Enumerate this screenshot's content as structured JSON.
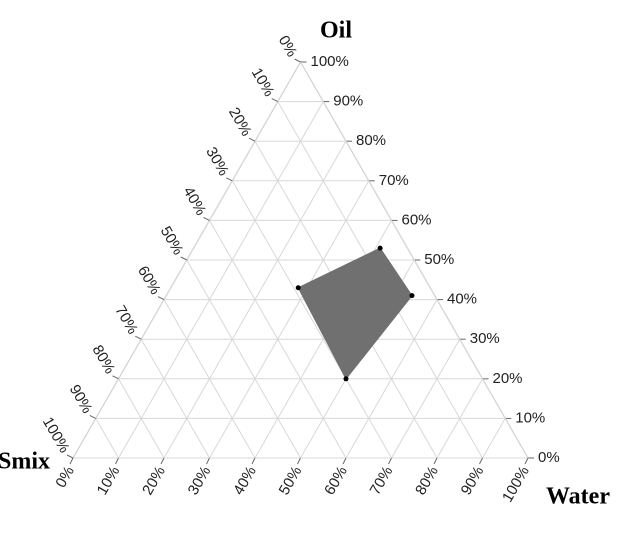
{
  "chart_data": {
    "type": "ternary",
    "axes": {
      "oil": {
        "title": "Oil",
        "ticks": [
          {
            "value": 0,
            "label": "0%"
          },
          {
            "value": 10,
            "label": "10%"
          },
          {
            "value": 20,
            "label": "20%"
          },
          {
            "value": 30,
            "label": "30%"
          },
          {
            "value": 40,
            "label": "40%"
          },
          {
            "value": 50,
            "label": "50%"
          },
          {
            "value": 60,
            "label": "60%"
          },
          {
            "value": 70,
            "label": "70%"
          },
          {
            "value": 80,
            "label": "80%"
          },
          {
            "value": 90,
            "label": "90%"
          },
          {
            "value": 100,
            "label": "100%"
          }
        ]
      },
      "water": {
        "title": "Water",
        "ticks": [
          {
            "value": 0,
            "label": "0%"
          },
          {
            "value": 10,
            "label": "10%"
          },
          {
            "value": 20,
            "label": "20%"
          },
          {
            "value": 30,
            "label": "30%"
          },
          {
            "value": 40,
            "label": "40%"
          },
          {
            "value": 50,
            "label": "50%"
          },
          {
            "value": 60,
            "label": "60%"
          },
          {
            "value": 70,
            "label": "70%"
          },
          {
            "value": 80,
            "label": "80%"
          },
          {
            "value": 90,
            "label": "90%"
          },
          {
            "value": 100,
            "label": "100%"
          }
        ]
      },
      "smix": {
        "title": "Smix",
        "ticks": [
          {
            "value": 0,
            "label": "0%"
          },
          {
            "value": 10,
            "label": "10%"
          },
          {
            "value": 20,
            "label": "20%"
          },
          {
            "value": 30,
            "label": "30%"
          },
          {
            "value": 40,
            "label": "40%"
          },
          {
            "value": 50,
            "label": "50%"
          },
          {
            "value": 60,
            "label": "60%"
          },
          {
            "value": 70,
            "label": "70%"
          },
          {
            "value": 80,
            "label": "80%"
          },
          {
            "value": 90,
            "label": "90%"
          },
          {
            "value": 100,
            "label": "100%"
          }
        ]
      }
    },
    "grid": true,
    "series": [
      {
        "color": "#707070",
        "oil": [
          53,
          41,
          20,
          43
        ],
        "water": [
          41,
          54,
          50,
          28
        ],
        "smix": [
          6,
          5,
          30,
          29
        ]
      }
    ]
  }
}
